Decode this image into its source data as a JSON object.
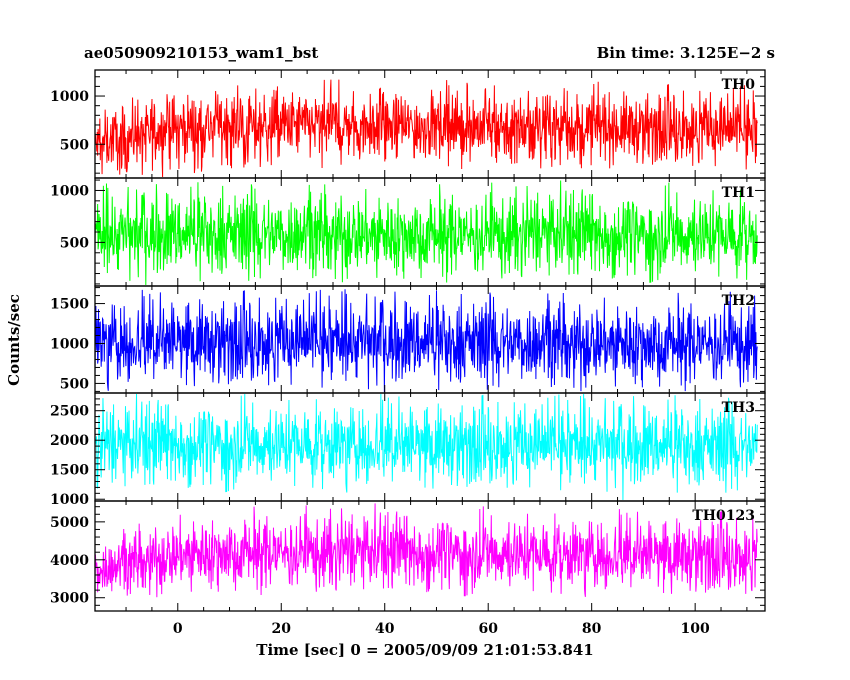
{
  "header": {
    "title": "ae050909210153_wam1_bst",
    "bin_time": "Bin time: 3.125E−2 s"
  },
  "chart_data": {
    "type": "line",
    "title": "ae050909210153_wam1_bst",
    "subtitle": "Bin time: 3.125E−2 s",
    "xlabel": "Time [sec] 0 = 2005/09/09 21:01:53.841",
    "ylabel": "Counts/sec",
    "x_ticks": [
      "0",
      "20",
      "40",
      "60",
      "80",
      "100"
    ],
    "x_tick_values": [
      0,
      20,
      40,
      60,
      80,
      100
    ],
    "xlim": [
      -16,
      113.5
    ],
    "data_x_range": [
      -16,
      112
    ],
    "bin_time_s": 0.03125,
    "grid": false,
    "series": [
      {
        "name": "TH0",
        "color": "#ff0000",
        "ylim": [
          150,
          1270
        ],
        "y_ticks": [
          "500",
          "1000"
        ],
        "y_tick_values": [
          500,
          1000
        ],
        "band": [
          [
            -16,
            260,
            720
          ],
          [
            -12,
            290,
            840
          ],
          [
            -8,
            320,
            900
          ],
          [
            -4,
            350,
            950
          ],
          [
            0,
            380,
            980
          ],
          [
            6,
            400,
            1000
          ],
          [
            20,
            400,
            1000
          ],
          [
            40,
            390,
            990
          ],
          [
            60,
            385,
            985
          ],
          [
            80,
            380,
            970
          ],
          [
            100,
            370,
            960
          ],
          [
            112,
            350,
            940
          ]
        ]
      },
      {
        "name": "TH1",
        "color": "#00ff00",
        "ylim": [
          80,
          1120
        ],
        "y_ticks": [
          "500",
          "1000"
        ],
        "y_tick_values": [
          500,
          1000
        ],
        "band": [
          [
            -16,
            260,
            880
          ],
          [
            0,
            270,
            900
          ],
          [
            20,
            270,
            900
          ],
          [
            40,
            265,
            895
          ],
          [
            60,
            265,
            895
          ],
          [
            80,
            260,
            890
          ],
          [
            100,
            260,
            890
          ],
          [
            112,
            255,
            880
          ]
        ]
      },
      {
        "name": "TH2",
        "color": "#0000ff",
        "ylim": [
          380,
          1720
        ],
        "y_ticks": [
          "500",
          "1000",
          "1500"
        ],
        "y_tick_values": [
          500,
          1000,
          1500
        ],
        "band": [
          [
            -16,
            600,
            1420
          ],
          [
            0,
            610,
            1440
          ],
          [
            20,
            610,
            1440
          ],
          [
            40,
            605,
            1430
          ],
          [
            60,
            605,
            1430
          ],
          [
            80,
            600,
            1420
          ],
          [
            100,
            600,
            1420
          ],
          [
            112,
            595,
            1410
          ]
        ]
      },
      {
        "name": "TH3",
        "color": "#00ffff",
        "ylim": [
          970,
          2800
        ],
        "y_ticks": [
          "1000",
          "1500",
          "2000",
          "2500"
        ],
        "y_tick_values": [
          1000,
          1500,
          2000,
          2500
        ],
        "band": [
          [
            -16,
            1350,
            2450
          ],
          [
            0,
            1380,
            2480
          ],
          [
            20,
            1380,
            2480
          ],
          [
            40,
            1370,
            2470
          ],
          [
            60,
            1370,
            2470
          ],
          [
            80,
            1365,
            2460
          ],
          [
            100,
            1360,
            2450
          ],
          [
            112,
            1350,
            2440
          ]
        ]
      },
      {
        "name": "TH0123",
        "color": "#ff00ff",
        "ylim": [
          2650,
          5550
        ],
        "y_ticks": [
          "3000",
          "4000",
          "5000"
        ],
        "y_tick_values": [
          3000,
          4000,
          5000
        ],
        "band": [
          [
            -16,
            3200,
            4300
          ],
          [
            -8,
            3300,
            4600
          ],
          [
            0,
            3400,
            4900
          ],
          [
            10,
            3450,
            5000
          ],
          [
            40,
            3420,
            4980
          ],
          [
            60,
            3400,
            4950
          ],
          [
            80,
            3380,
            4900
          ],
          [
            100,
            3360,
            4880
          ],
          [
            112,
            3340,
            4850
          ]
        ]
      }
    ]
  }
}
